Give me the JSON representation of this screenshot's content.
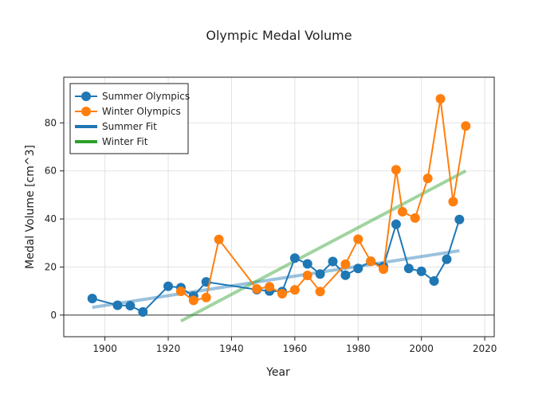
{
  "chart_data": {
    "type": "line",
    "title": "Olympic Medal Volume",
    "xlabel": "Year",
    "ylabel": "Medal Volume [cm^3]",
    "xlim": [
      1887,
      2023
    ],
    "ylim": [
      -9,
      99
    ],
    "xticks": [
      1900,
      1920,
      1940,
      1960,
      1980,
      2000,
      2020
    ],
    "yticks": [
      0,
      20,
      40,
      60,
      80
    ],
    "grid": true,
    "legend_position": "top-left",
    "series": [
      {
        "name": "Summer Olympics",
        "kind": "line+markers",
        "color": "#1f77b4",
        "x": [
          1896,
          1904,
          1908,
          1912,
          1920,
          1924,
          1928,
          1932,
          1948,
          1952,
          1956,
          1960,
          1964,
          1968,
          1972,
          1976,
          1980,
          1984,
          1988,
          1992,
          1996,
          2000,
          2004,
          2008,
          2012
        ],
        "y": [
          6.9,
          4.1,
          3.9,
          1.3,
          12.0,
          11.4,
          7.9,
          13.8,
          10.6,
          10.0,
          9.8,
          23.7,
          21.3,
          17.1,
          22.3,
          16.6,
          19.4,
          22.4,
          20.2,
          37.8,
          19.4,
          18.2,
          14.2,
          23.2,
          39.8
        ]
      },
      {
        "name": "Winter Olympics",
        "kind": "line+markers",
        "color": "#ff7f0e",
        "x": [
          1924,
          1928,
          1932,
          1936,
          1948,
          1952,
          1956,
          1960,
          1964,
          1968,
          1976,
          1980,
          1984,
          1988,
          1992,
          1994,
          1998,
          2002,
          2006,
          2010,
          2014
        ],
        "y": [
          9.9,
          6.1,
          7.3,
          31.5,
          10.9,
          11.8,
          8.9,
          10.5,
          16.5,
          9.8,
          21.2,
          31.6,
          22.4,
          19.1,
          60.5,
          43.0,
          40.4,
          56.9,
          90.0,
          47.2,
          78.7
        ]
      },
      {
        "name": "Summer Fit",
        "kind": "fit",
        "color": "#1f77b4",
        "x": [
          1896,
          2012
        ],
        "y": [
          3.2,
          26.8
        ]
      },
      {
        "name": "Winter Fit",
        "kind": "fit",
        "color": "#2ca02c",
        "x": [
          1924,
          2014
        ],
        "y": [
          -2.5,
          60.0
        ]
      }
    ]
  }
}
